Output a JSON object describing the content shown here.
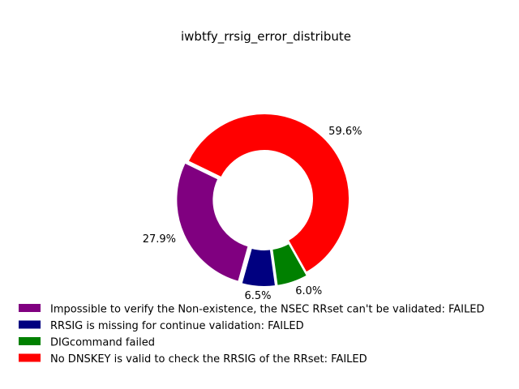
{
  "chart_data": {
    "type": "pie",
    "donut": true,
    "title": "iwbtfy_rrsig_error_distribute",
    "slices": [
      {
        "label": "Impossible to verify the Non-existence, the NSEC RRset can't be validated: FAILED",
        "percent": 27.9,
        "pct_label": "27.9%",
        "color": "#800080"
      },
      {
        "label": "RRSIG is missing for continue validation: FAILED",
        "percent": 6.5,
        "pct_label": "6.5%",
        "color": "#000080"
      },
      {
        "label": "DIGcommand failed",
        "percent": 6.0,
        "pct_label": "6.0%",
        "color": "#008000"
      },
      {
        "label": "No DNSKEY is valid to check the RRSIG of the RRset: FAILED",
        "percent": 59.6,
        "pct_label": "59.6%",
        "color": "#ff0000"
      }
    ],
    "legend_position": "bottom-left",
    "grid": false
  }
}
